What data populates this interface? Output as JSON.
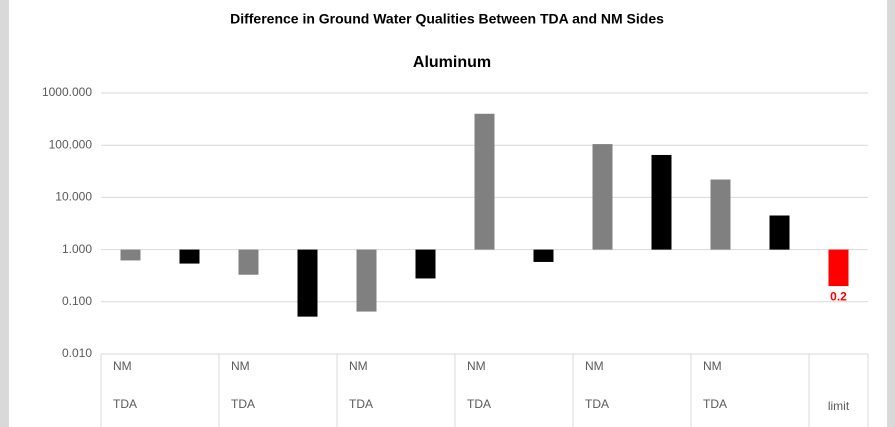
{
  "chart_data": {
    "type": "bar",
    "title": "Difference in Ground Water  Qualities Between  TDA  and NM  Sides",
    "subtitle": "Aluminum",
    "values": [
      0.62,
      0.54,
      0.33,
      0.052,
      0.065,
      0.28,
      400,
      0.58,
      105,
      65,
      22,
      4.5,
      0.2
    ],
    "colors": [
      "#808080",
      "#000000",
      "#808080",
      "#000000",
      "#808080",
      "#000000",
      "#808080",
      "#000000",
      "#808080",
      "#000000",
      "#808080",
      "#000000",
      "#ff0000"
    ],
    "value_labels": [
      null,
      null,
      null,
      null,
      null,
      null,
      null,
      null,
      null,
      null,
      null,
      null,
      "0.2"
    ],
    "groups": [
      {
        "label_1": "NM",
        "label_2": "TDA"
      },
      {
        "label_1": "NM",
        "label_2": "TDA"
      },
      {
        "label_1": "NM",
        "label_2": "TDA"
      },
      {
        "label_1": "NM",
        "label_2": "TDA"
      },
      {
        "label_1": "NM",
        "label_2": "TDA"
      },
      {
        "label_1": "NM",
        "label_2": "TDA"
      },
      {
        "label_2": "limit"
      }
    ],
    "log_scale": true,
    "bar_origin": 1,
    "ylim": [
      0.01,
      1000
    ],
    "yticks": [
      {
        "value": 0.01,
        "label": "0.010"
      },
      {
        "value": 0.1,
        "label": "0.100"
      },
      {
        "value": 1,
        "label": "1.000"
      },
      {
        "value": 10,
        "label": "10.000"
      },
      {
        "value": 100,
        "label": "100.000"
      },
      {
        "value": 1000,
        "label": "1000.000"
      }
    ],
    "grid": true
  }
}
